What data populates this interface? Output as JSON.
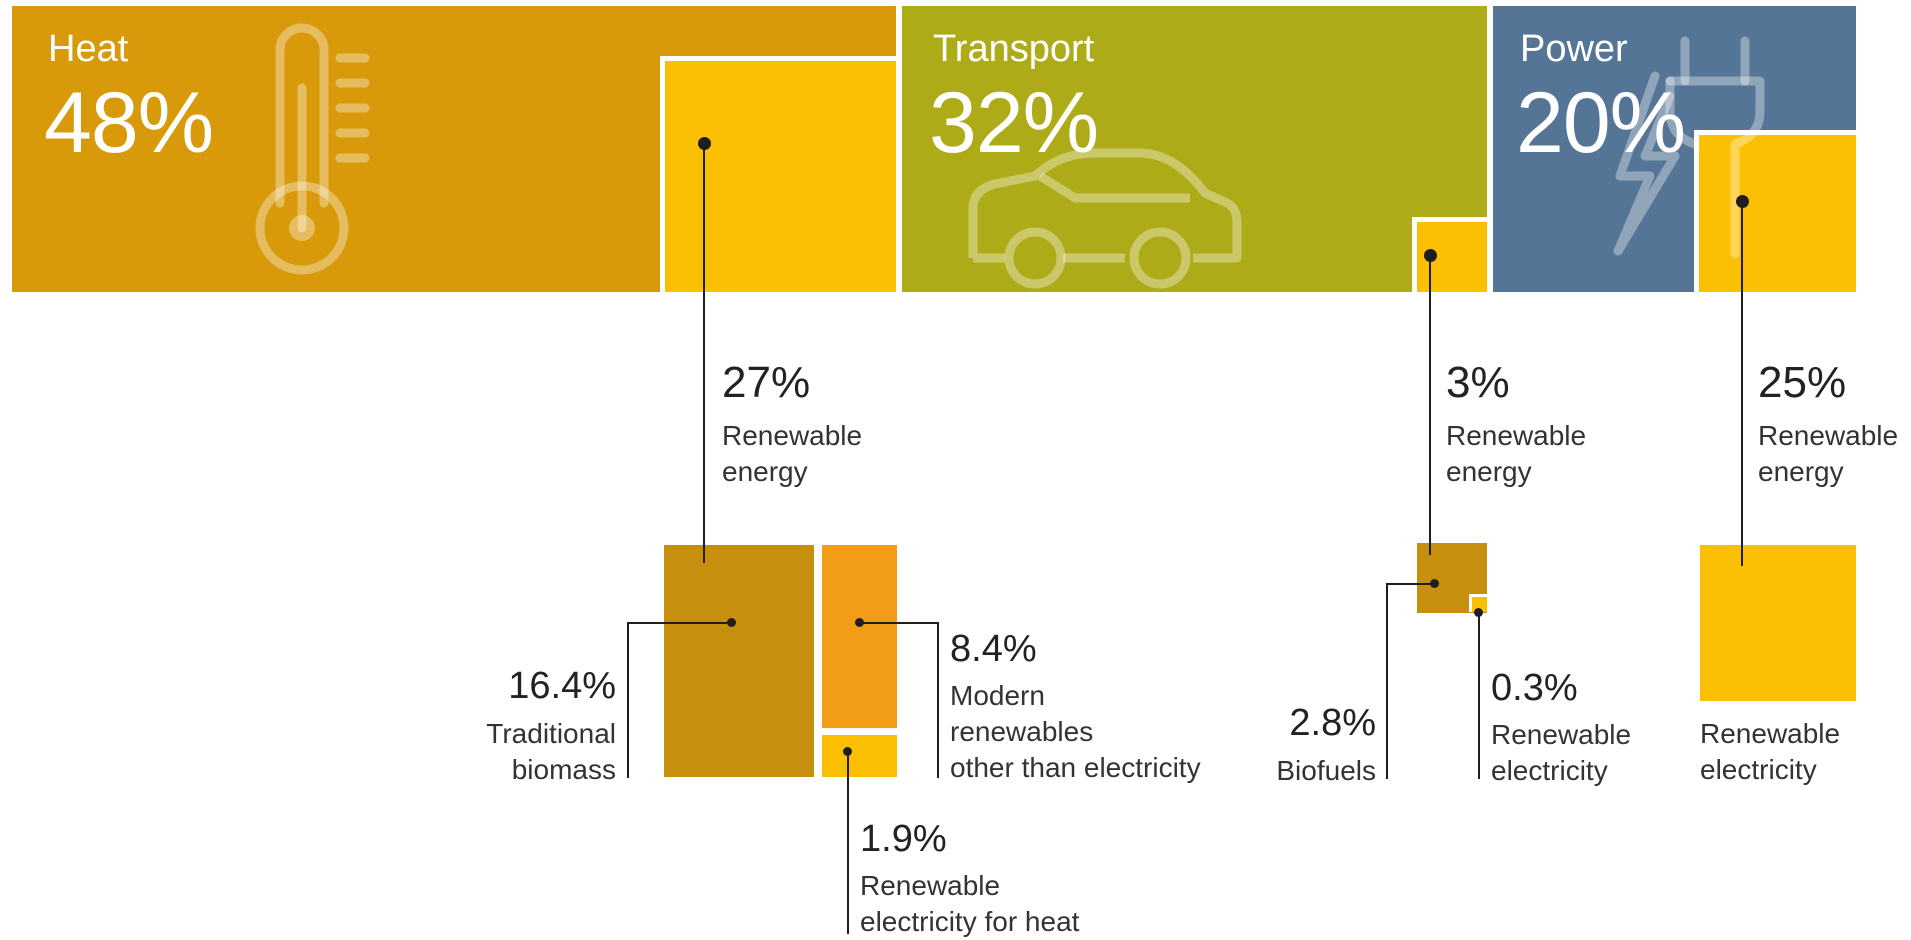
{
  "colors": {
    "heat": "#d89a0a",
    "transport": "#aeab18",
    "power": "#557596",
    "renewable": "#fbbf03",
    "traditional_biomass": "#c68f0d",
    "modern_renewables": "#f39c18",
    "line": "#1e1e1e"
  },
  "sectors": {
    "heat": {
      "title": "Heat",
      "share": "48%",
      "icon": "thermometer-icon",
      "renewable": {
        "share": "27%",
        "label": "Renewable\nenergy"
      },
      "breakdown": {
        "traditional": {
          "value": "16.4%",
          "label": "Traditional\nbiomass"
        },
        "modern": {
          "value": "8.4%",
          "label": "Modern\nrenewables\nother than electricity"
        },
        "electricity": {
          "value": "1.9%",
          "label": "Renewable\nelectricity for heat"
        }
      }
    },
    "transport": {
      "title": "Transport",
      "share": "32%",
      "icon": "car-icon",
      "renewable": {
        "share": "3%",
        "label": "Renewable\nenergy"
      },
      "breakdown": {
        "biofuels": {
          "value": "2.8%",
          "label": "Biofuels"
        },
        "electricity": {
          "value": "0.3%",
          "label": "Renewable\nelectricity"
        }
      }
    },
    "power": {
      "title": "Power",
      "share": "20%",
      "icon": "plug-lightning-icon",
      "renewable": {
        "share": "25%",
        "label": "Renewable\nenergy"
      },
      "breakdown": {
        "electricity": {
          "label": "Renewable\nelectricity"
        }
      }
    }
  },
  "chart_data": {
    "type": "treemap",
    "categories": [
      "Heat",
      "Transport",
      "Power"
    ],
    "values": [
      48,
      32,
      20
    ],
    "unit": "%",
    "renewable_share": {
      "Heat": 27,
      "Transport": 3,
      "Power": 25
    },
    "breakdown": {
      "Heat": [
        {
          "name": "Traditional biomass",
          "value": 16.4
        },
        {
          "name": "Modern renewables other than electricity",
          "value": 8.4
        },
        {
          "name": "Renewable electricity for heat",
          "value": 1.9
        }
      ],
      "Transport": [
        {
          "name": "Biofuels",
          "value": 2.8
        },
        {
          "name": "Renewable electricity",
          "value": 0.3
        }
      ],
      "Power": [
        {
          "name": "Renewable electricity",
          "value": 25
        }
      ]
    }
  }
}
